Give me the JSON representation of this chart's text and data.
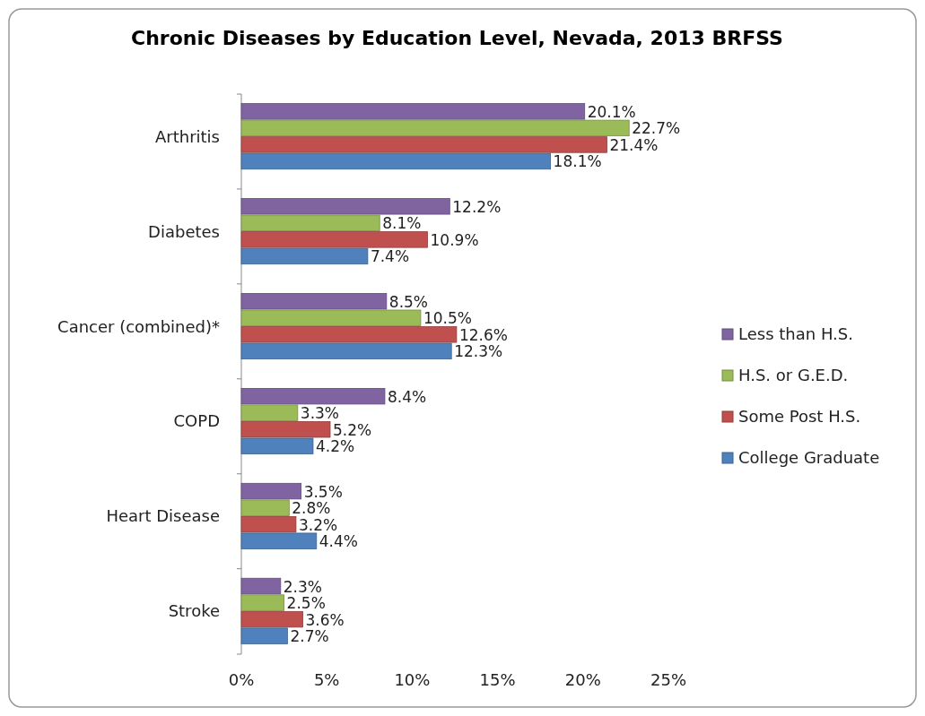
{
  "chart_data": {
    "type": "bar",
    "orientation": "horizontal",
    "title": "Chronic Diseases by Education Level, Nevada, 2013 BRFSS",
    "categories": [
      "Arthritis",
      "Diabetes",
      "Cancer (combined)*",
      "COPD",
      "Heart Disease",
      "Stroke"
    ],
    "series": [
      {
        "name": "Less than H.S.",
        "color": "#8064a2",
        "values": [
          20.1,
          12.2,
          8.5,
          8.4,
          3.5,
          2.3
        ],
        "value_labels": [
          "20.1%",
          "12.2%",
          "8.5%",
          "8.4%",
          "3.5%",
          "2.3%"
        ]
      },
      {
        "name": "H.S. or G.E.D.",
        "color": "#9bbb59",
        "values": [
          22.7,
          8.1,
          10.5,
          3.3,
          2.8,
          2.5
        ],
        "value_labels": [
          "22.7%",
          "8.1%",
          "10.5%",
          "3.3%",
          "2.8%",
          "2.5%"
        ]
      },
      {
        "name": "Some Post H.S.",
        "color": "#c0504d",
        "values": [
          21.4,
          10.9,
          12.6,
          5.2,
          3.2,
          3.6
        ],
        "value_labels": [
          "21.4%",
          "10.9%",
          "12.6%",
          "5.2%",
          "3.2%",
          "3.6%"
        ]
      },
      {
        "name": "College Graduate",
        "color": "#4f81bd",
        "values": [
          18.1,
          7.4,
          12.3,
          4.2,
          4.4,
          2.7
        ],
        "value_labels": [
          "18.1%",
          "7.4%",
          "12.3%",
          "4.2%",
          "4.4%",
          "2.7%"
        ]
      }
    ],
    "xlim": [
      0,
      25
    ],
    "xticks": [
      {
        "value": 0,
        "label": "0%"
      },
      {
        "value": 5,
        "label": "5%"
      },
      {
        "value": 10,
        "label": "10%"
      },
      {
        "value": 15,
        "label": "15%"
      },
      {
        "value": 20,
        "label": "20%"
      },
      {
        "value": 25,
        "label": "25%"
      }
    ],
    "legend": "right"
  }
}
